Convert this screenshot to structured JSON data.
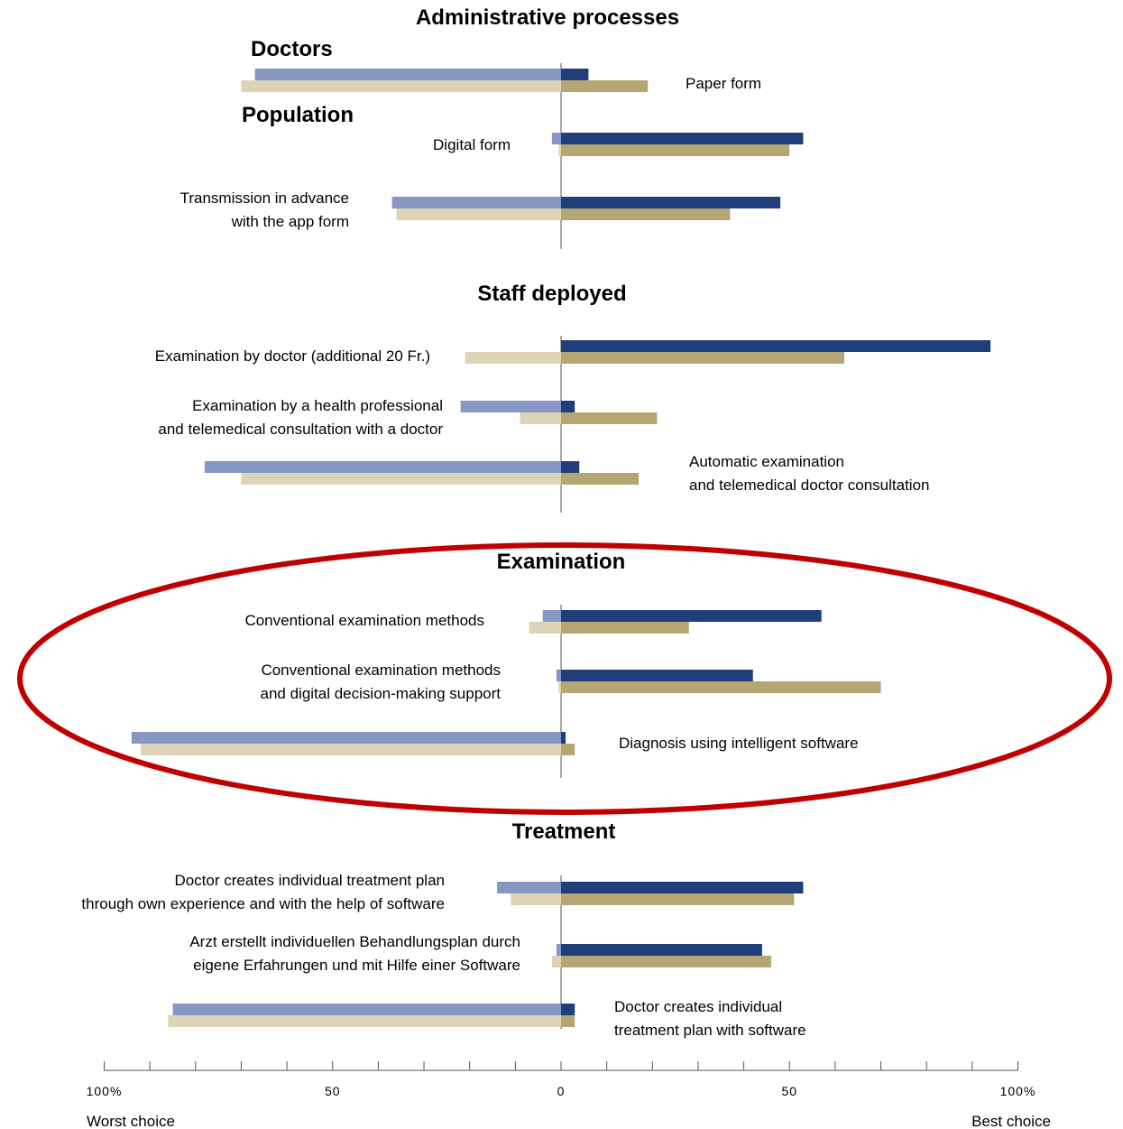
{
  "chart_data": {
    "type": "bar",
    "orientation": "horizontal",
    "diverging": true,
    "xlim": [
      -100,
      100
    ],
    "x_ticks": [
      -100,
      -50,
      0,
      50,
      100
    ],
    "x_tick_labels": [
      "100%",
      "50",
      "0",
      "50",
      "100%"
    ],
    "left_label": "Worst choice",
    "right_label": "Best choice",
    "legend_labels": [
      "Doctors",
      "Population"
    ],
    "colors": {
      "doctors_best": "#1f3f7a",
      "doctors_worst": "#8796c2",
      "population_best": "#b4a774",
      "population_worst": "#ddd4b8",
      "axis": "#555555",
      "highlight": "#c00000"
    },
    "sections": [
      {
        "title": "Administrative processes",
        "items": [
          {
            "label": [
              "Paper form"
            ],
            "doctors_worst": 67,
            "doctors_best": 6,
            "population_worst": 70,
            "population_best": 19
          },
          {
            "label": [
              "Digital form"
            ],
            "doctors_worst": 2,
            "doctors_best": 53,
            "population_worst": 0.5,
            "population_best": 50
          },
          {
            "label": [
              "Transmission in advance",
              "with the app form"
            ],
            "doctors_worst": 37,
            "doctors_best": 48,
            "population_worst": 36,
            "population_best": 37
          }
        ]
      },
      {
        "title": "Staff deployed",
        "items": [
          {
            "label": [
              "Examination by doctor (additional 20 Fr.)"
            ],
            "doctors_worst": 0,
            "doctors_best": 94,
            "population_worst": 21,
            "population_best": 62
          },
          {
            "label": [
              "Examination by a health professional",
              "and telemedical consultation with a doctor"
            ],
            "doctors_worst": 22,
            "doctors_best": 3,
            "population_worst": 9,
            "population_best": 21
          },
          {
            "label": [
              "Automatic examination",
              "and telemedical doctor consultation"
            ],
            "doctors_worst": 78,
            "doctors_best": 4,
            "population_worst": 70,
            "population_best": 17
          }
        ]
      },
      {
        "title": "Examination",
        "highlighted": true,
        "items": [
          {
            "label": [
              "Conventional examination methods"
            ],
            "doctors_worst": 4,
            "doctors_best": 57,
            "population_worst": 7,
            "population_best": 28
          },
          {
            "label": [
              "Conventional examination methods",
              "and digital decision-making support"
            ],
            "doctors_worst": 1,
            "doctors_best": 42,
            "population_worst": 0.5,
            "population_best": 70
          },
          {
            "label": [
              "Diagnosis using intelligent software"
            ],
            "doctors_worst": 94,
            "doctors_best": 1,
            "population_worst": 92,
            "population_best": 3
          }
        ]
      },
      {
        "title": "Treatment",
        "items": [
          {
            "label": [
              "Doctor creates individual treatment plan",
              "through own experience and with the help of software"
            ],
            "doctors_worst": 14,
            "doctors_best": 53,
            "population_worst": 11,
            "population_best": 51
          },
          {
            "label": [
              "Arzt erstellt individuellen Behandlungsplan durch",
              "eigene Erfahrungen und mit Hilfe einer Software"
            ],
            "doctors_worst": 1,
            "doctors_best": 44,
            "population_worst": 2,
            "population_best": 46
          },
          {
            "label": [
              "Doctor creates individual",
              "treatment plan with software"
            ],
            "doctors_worst": 85,
            "doctors_best": 3,
            "population_worst": 86,
            "population_best": 3
          }
        ]
      }
    ]
  }
}
